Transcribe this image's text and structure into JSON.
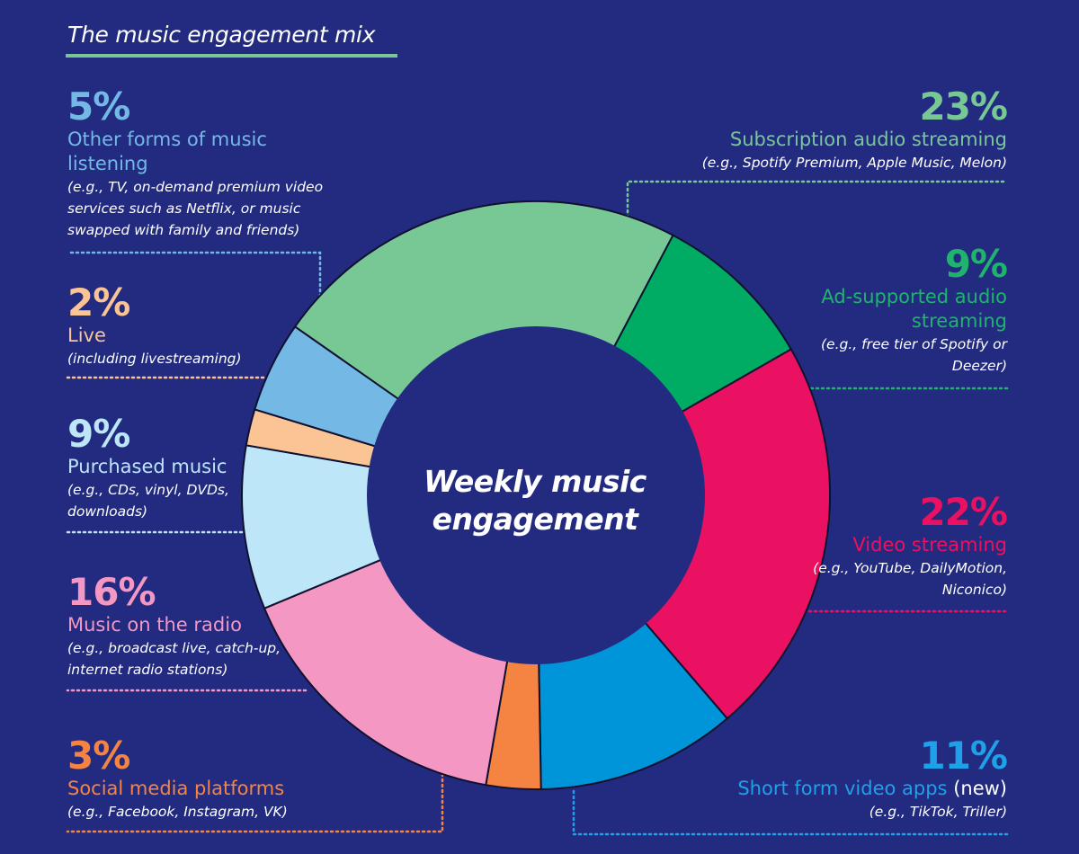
{
  "header": {
    "title": "The music engagement mix"
  },
  "chart_data": {
    "type": "pie",
    "title": "Weekly music engagement",
    "segments": [
      {
        "percent_label": "23%",
        "value": 23,
        "name": "Subscription audio streaming",
        "examples": "(e.g., Spotify Premium, Apple Music, Melon)",
        "color": "#78c896",
        "label_color": "#78c896",
        "name_suffix": ""
      },
      {
        "percent_label": "9%",
        "value": 9,
        "name": "Ad-supported audio streaming",
        "examples": "(e.g., free tier of Spotify or Deezer)",
        "color": "#00ab64",
        "label_color": "#1fb36e",
        "name_suffix": ""
      },
      {
        "percent_label": "22%",
        "value": 22,
        "name": "Video streaming",
        "examples": "(e.g., YouTube, DailyMotion, Niconico)",
        "color": "#eb1162",
        "label_color": "#eb1162",
        "name_suffix": ""
      },
      {
        "percent_label": "11%",
        "value": 11,
        "name": "Short form video apps",
        "name_suffix": "(new)",
        "examples": "(e.g., TikTok, Triller)",
        "color": "#0094d9",
        "label_color": "#1ea1e8",
        "suffix_color": "#ffffff"
      },
      {
        "percent_label": "3%",
        "value": 3,
        "name": "Social media platforms",
        "examples": "(e.g., Facebook, Instagram, VK)",
        "color": "#f58442",
        "label_color": "#f58442",
        "name_suffix": ""
      },
      {
        "percent_label": "16%",
        "value": 16,
        "name": "Music on the radio",
        "examples": "(e.g., broadcast live, catch-up, internet radio stations)",
        "color": "#f497c3",
        "label_color": "#f497c3",
        "name_suffix": ""
      },
      {
        "percent_label": "9%",
        "value": 9,
        "name": "Purchased music",
        "examples": "(e.g., CDs, vinyl, DVDs, downloads)",
        "color": "#bde6f8",
        "label_color": "#bde6f8",
        "name_suffix": ""
      },
      {
        "percent_label": "2%",
        "value": 2,
        "name": "Live",
        "examples": "(including livestreaming)",
        "color": "#fbc495",
        "label_color": "#fbc495",
        "name_suffix": ""
      },
      {
        "percent_label": "5%",
        "value": 5,
        "name": "Other forms of music listening",
        "examples": "(e.g., TV, on-demand premium video services such as Netflix, or music swapped with family and friends)",
        "color": "#74b9e6",
        "label_color": "#74b9e6",
        "name_suffix": ""
      }
    ]
  },
  "colors": {
    "background": "#232b80",
    "title_underline": "#78c896",
    "wheel_stroke": "#101030"
  }
}
